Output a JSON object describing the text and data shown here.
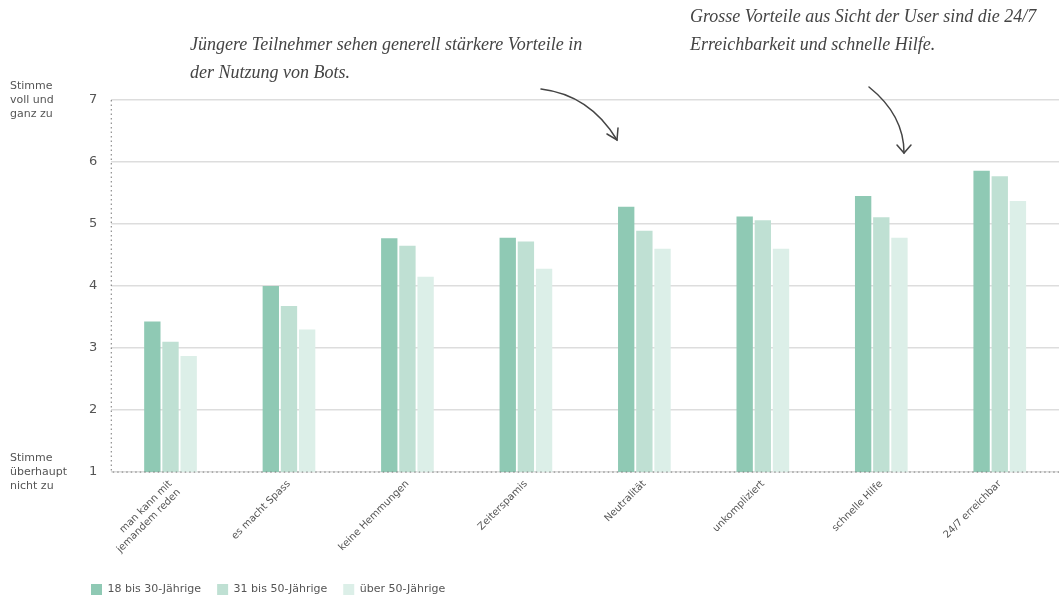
{
  "chart_data": {
    "type": "bar",
    "categories": [
      "man kann mit jemandem reden",
      "es macht Spass",
      "keine Hemmungen",
      "Zeiterspamis",
      "Neutralität",
      "unkompliziert",
      "schnelle Hilfe",
      "24/7 erreichbar"
    ],
    "series": [
      {
        "name": "18 bis 30-Jährige",
        "color": "#8fc9b4",
        "values": [
          3.43,
          4.0,
          4.77,
          4.78,
          5.28,
          5.12,
          5.45,
          5.86
        ]
      },
      {
        "name": "31 bis 50-Jährige",
        "color": "#bfe0d3",
        "values": [
          3.1,
          3.68,
          4.65,
          4.72,
          4.89,
          5.06,
          5.11,
          5.77
        ]
      },
      {
        "name": "über 50-Jährige",
        "color": "#dcefe8",
        "values": [
          2.87,
          3.3,
          4.15,
          4.28,
          4.6,
          4.6,
          4.78,
          5.37
        ]
      }
    ],
    "ylim": [
      1,
      7
    ],
    "yticks": [
      1,
      2,
      3,
      4,
      5,
      6,
      7
    ],
    "grid": "y",
    "legend": "bottom left",
    "annotations": [
      "Jüngere Teilnehmer sehen generell stärkere Vorteile in der Nutzung von Bots.",
      "Grosse Vorteile aus Sicht der User sind die 24/7 Erreichbarkeit und schnelle Hilfe.",
      "Stimme voll und ganz zu",
      "Stimme überhaupt nicht zu"
    ]
  }
}
